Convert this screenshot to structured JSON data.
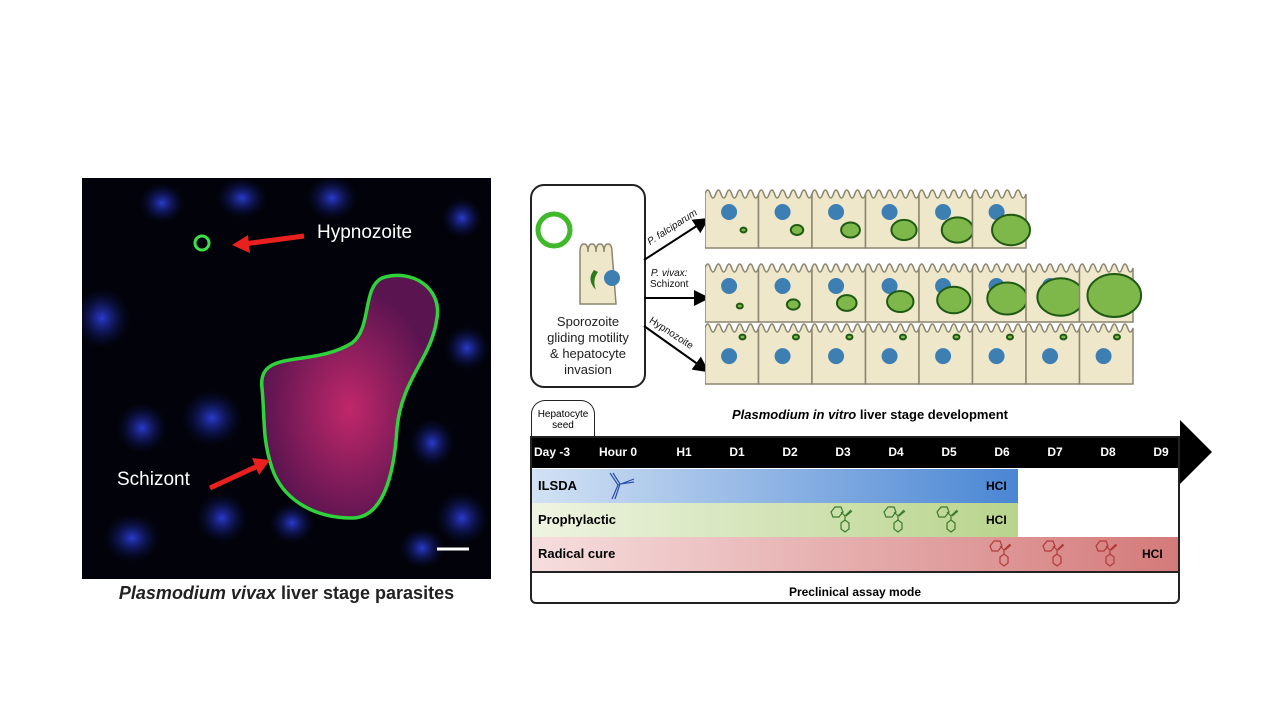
{
  "micrograph": {
    "labels": {
      "hypnozoite": "Hypnozoite",
      "schizont": "Schizont"
    },
    "caption": {
      "species": "Plasmodium vivax",
      "rest": " liver stage parasites"
    }
  },
  "diagram": {
    "sporozoite_box": [
      "Sporozoite",
      "gliding motility",
      "& hepatocyte",
      "invasion"
    ],
    "paths": {
      "falciparum": "P. falciparum",
      "vivax": "P. vivax:",
      "vivax2": "Schizont",
      "hypnozoite": "Hypnozoite"
    },
    "rows": {
      "falciparum_cells": 6,
      "vivax_cells": 8,
      "hypnozoite_cells": 8
    }
  },
  "timeline": {
    "title_italic": "Plasmodium in vitro",
    "title_rest": " liver stage development",
    "seed": "Hepatocyte seed",
    "ticks": [
      "Day -3",
      "Hour 0",
      "H1",
      "D1",
      "D2",
      "D3",
      "D4",
      "D5",
      "D6",
      "D7",
      "D8",
      "D9"
    ],
    "assays": [
      {
        "label": "ILSDA",
        "end": "D6",
        "readout": "HCI",
        "color": "#4a86d4"
      },
      {
        "label": "Prophylactic",
        "end": "D6",
        "readout": "HCI",
        "color": "#b8d48c",
        "drug_days": [
          "D3",
          "D4",
          "D5"
        ]
      },
      {
        "label": "Radical cure",
        "end": "D9",
        "readout": "HCI",
        "color": "#d47a7a",
        "drug_days": [
          "D6",
          "D7",
          "D8"
        ]
      }
    ],
    "footer": "Preclinical assay mode"
  }
}
